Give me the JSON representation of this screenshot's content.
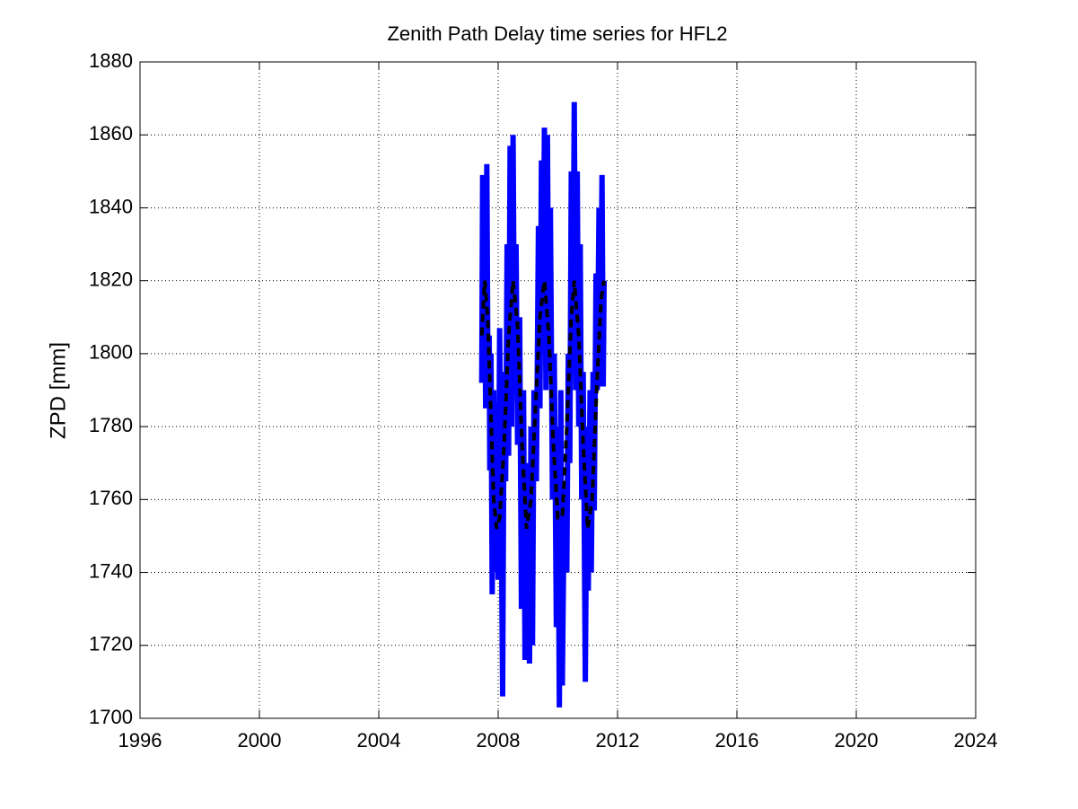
{
  "chart_data": {
    "type": "line",
    "title": "Zenith Path Delay time series for HFL2",
    "ylabel": "ZPD [mm]",
    "xlim": [
      1996,
      2024
    ],
    "xticks": [
      1996,
      2000,
      2004,
      2008,
      2012,
      2016,
      2020,
      2024
    ],
    "ylim": [
      1700,
      1880
    ],
    "yticks": [
      1700,
      1720,
      1740,
      1760,
      1780,
      1800,
      1820,
      1840,
      1860,
      1880
    ],
    "grid": true,
    "series": [
      {
        "color": "#0000ff",
        "style": "solid",
        "x": [
          2007.45,
          2007.48,
          2007.52,
          2007.55,
          2007.58,
          2007.62,
          2007.66,
          2007.7,
          2007.72,
          2007.76,
          2007.8,
          2007.85,
          2007.9,
          2007.95,
          2008.0,
          2008.05,
          2008.1,
          2008.15,
          2008.2,
          2008.25,
          2008.3,
          2008.35,
          2008.4,
          2008.45,
          2008.5,
          2008.55,
          2008.6,
          2008.65,
          2008.72,
          2008.78,
          2008.85,
          2008.9,
          2008.95,
          2009.0,
          2009.05,
          2009.1,
          2009.15,
          2009.2,
          2009.28,
          2009.35,
          2009.4,
          2009.45,
          2009.5,
          2009.55,
          2009.6,
          2009.65,
          2009.7,
          2009.75,
          2009.82,
          2009.88,
          2009.95,
          2010.0,
          2010.05,
          2010.1,
          2010.15,
          2010.22,
          2010.3,
          2010.35,
          2010.4,
          2010.45,
          2010.5,
          2010.55,
          2010.6,
          2010.65,
          2010.7,
          2010.75,
          2010.8,
          2010.85,
          2010.92,
          2010.98,
          2011.02,
          2011.08,
          2011.12,
          2011.18,
          2011.22,
          2011.28,
          2011.32,
          2011.38,
          2011.42,
          2011.48,
          2011.52,
          2011.55
        ],
        "values": [
          1792,
          1849,
          1800,
          1840,
          1785,
          1852,
          1790,
          1805,
          1768,
          1800,
          1734,
          1790,
          1740,
          1775,
          1738,
          1807,
          1760,
          1706,
          1795,
          1765,
          1830,
          1772,
          1857,
          1780,
          1860,
          1790,
          1830,
          1775,
          1810,
          1730,
          1790,
          1716,
          1770,
          1752,
          1715,
          1780,
          1720,
          1790,
          1765,
          1835,
          1785,
          1853,
          1800,
          1862,
          1790,
          1860,
          1795,
          1840,
          1760,
          1800,
          1725,
          1780,
          1703,
          1790,
          1709,
          1765,
          1740,
          1800,
          1770,
          1850,
          1800,
          1869,
          1790,
          1850,
          1780,
          1830,
          1760,
          1795,
          1710,
          1780,
          1735,
          1790,
          1740,
          1795,
          1757,
          1822,
          1790,
          1840,
          1791,
          1849,
          1791,
          1820
        ]
      },
      {
        "color": "#000000",
        "style": "dashed",
        "x": [
          2007.45,
          2007.55,
          2007.65,
          2007.75,
          2007.85,
          2007.95,
          2008.05,
          2008.2,
          2008.35,
          2008.5,
          2008.65,
          2008.8,
          2008.95,
          2009.1,
          2009.25,
          2009.4,
          2009.55,
          2009.7,
          2009.85,
          2010.0,
          2010.15,
          2010.3,
          2010.45,
          2010.55,
          2010.7,
          2010.85,
          2011.0,
          2011.15,
          2011.3,
          2011.45,
          2011.55
        ],
        "values": [
          1805,
          1820,
          1810,
          1785,
          1760,
          1752,
          1755,
          1775,
          1805,
          1820,
          1808,
          1775,
          1752,
          1760,
          1785,
          1810,
          1820,
          1805,
          1775,
          1755,
          1755,
          1780,
          1810,
          1820,
          1805,
          1775,
          1752,
          1760,
          1790,
          1815,
          1820
        ]
      }
    ]
  }
}
